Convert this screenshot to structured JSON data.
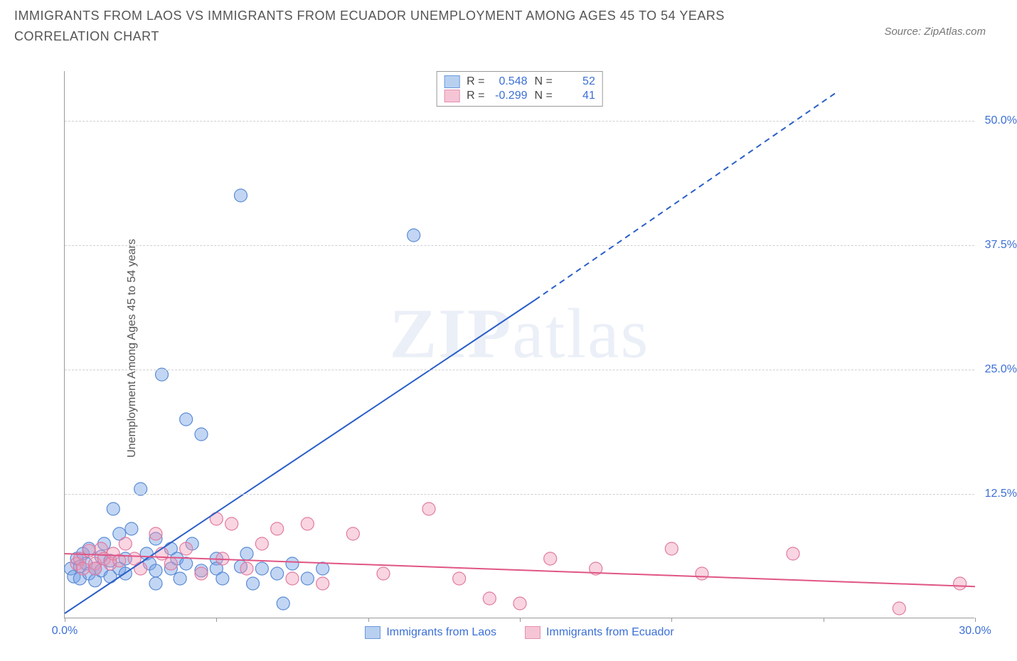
{
  "title": "IMMIGRANTS FROM LAOS VS IMMIGRANTS FROM ECUADOR UNEMPLOYMENT AMONG AGES 45 TO 54 YEARS CORRELATION CHART",
  "source": "Source: ZipAtlas.com",
  "ylabel": "Unemployment Among Ages 45 to 54 years",
  "watermark_zip": "ZIP",
  "watermark_atlas": "atlas",
  "chart": {
    "type": "scatter",
    "x_range": [
      0,
      30
    ],
    "y_range": [
      0,
      55
    ],
    "y_ticks": [
      12.5,
      25.0,
      37.5,
      50.0
    ],
    "y_tick_labels": [
      "12.5%",
      "25.0%",
      "37.5%",
      "50.0%"
    ],
    "x_ticks": [
      0,
      5,
      10,
      15,
      20,
      25,
      30
    ],
    "x_tick_labels": [
      "0.0%",
      "",
      "",
      "",
      "",
      "",
      "30.0%"
    ],
    "background_color": "#ffffff",
    "grid_color": "#d0d0d0",
    "axis_color": "#999999",
    "series": [
      {
        "name": "Immigrants from Laos",
        "color_fill": "rgba(120,165,230,0.45)",
        "color_stroke": "#5b8bd4",
        "swatch_fill": "#b8d0f0",
        "swatch_border": "#6a9ae0",
        "marker_radius": 9,
        "R": "0.548",
        "N": "52",
        "trend": {
          "x1": 0,
          "y1": 0.5,
          "x2_solid": 15.5,
          "y2_solid": 32,
          "x2_dash": 25.5,
          "y2_dash": 53,
          "color": "#2b5fc8",
          "width": 2
        },
        "points": [
          [
            0.2,
            5.0
          ],
          [
            0.3,
            4.2
          ],
          [
            0.4,
            6.0
          ],
          [
            0.5,
            5.2
          ],
          [
            0.5,
            4.0
          ],
          [
            0.6,
            6.5
          ],
          [
            0.7,
            5.5
          ],
          [
            0.8,
            7.0
          ],
          [
            0.8,
            4.5
          ],
          [
            1.0,
            5.0
          ],
          [
            1.0,
            3.8
          ],
          [
            1.2,
            6.2
          ],
          [
            1.2,
            4.8
          ],
          [
            1.3,
            7.5
          ],
          [
            1.5,
            5.8
          ],
          [
            1.5,
            4.2
          ],
          [
            1.6,
            11.0
          ],
          [
            1.8,
            8.5
          ],
          [
            1.8,
            5.0
          ],
          [
            2.0,
            6.0
          ],
          [
            2.0,
            4.5
          ],
          [
            2.2,
            9.0
          ],
          [
            2.5,
            13.0
          ],
          [
            2.7,
            6.5
          ],
          [
            2.8,
            5.5
          ],
          [
            3.0,
            8.0
          ],
          [
            3.0,
            4.8
          ],
          [
            3.0,
            3.5
          ],
          [
            3.2,
            24.5
          ],
          [
            3.5,
            7.0
          ],
          [
            3.5,
            5.0
          ],
          [
            3.7,
            6.0
          ],
          [
            3.8,
            4.0
          ],
          [
            4.0,
            20.0
          ],
          [
            4.0,
            5.5
          ],
          [
            4.2,
            7.5
          ],
          [
            4.5,
            18.5
          ],
          [
            4.5,
            4.8
          ],
          [
            5.0,
            6.0
          ],
          [
            5.0,
            5.0
          ],
          [
            5.2,
            4.0
          ],
          [
            5.8,
            42.5
          ],
          [
            5.8,
            5.2
          ],
          [
            6.0,
            6.5
          ],
          [
            6.2,
            3.5
          ],
          [
            6.5,
            5.0
          ],
          [
            7.0,
            4.5
          ],
          [
            7.2,
            1.5
          ],
          [
            7.5,
            5.5
          ],
          [
            8.0,
            4.0
          ],
          [
            8.5,
            5.0
          ],
          [
            11.5,
            38.5
          ]
        ]
      },
      {
        "name": "Immigrants from Ecuador",
        "color_fill": "rgba(240,150,180,0.40)",
        "color_stroke": "#e07ba0",
        "swatch_fill": "#f5c5d5",
        "swatch_border": "#e591b0",
        "marker_radius": 9,
        "R": "-0.299",
        "N": "41",
        "trend": {
          "x1": 0,
          "y1": 6.5,
          "x2_solid": 30,
          "y2_solid": 3.2,
          "color": "#e05585",
          "width": 2
        },
        "points": [
          [
            0.4,
            5.5
          ],
          [
            0.5,
            6.0
          ],
          [
            0.6,
            5.0
          ],
          [
            0.8,
            6.8
          ],
          [
            1.0,
            5.5
          ],
          [
            1.0,
            5.0
          ],
          [
            1.2,
            7.0
          ],
          [
            1.3,
            6.0
          ],
          [
            1.5,
            5.5
          ],
          [
            1.6,
            6.5
          ],
          [
            1.8,
            5.8
          ],
          [
            2.0,
            7.5
          ],
          [
            2.3,
            6.0
          ],
          [
            2.5,
            5.0
          ],
          [
            3.0,
            8.5
          ],
          [
            3.2,
            6.5
          ],
          [
            3.5,
            5.5
          ],
          [
            4.0,
            7.0
          ],
          [
            4.5,
            4.5
          ],
          [
            5.0,
            10.0
          ],
          [
            5.2,
            6.0
          ],
          [
            5.5,
            9.5
          ],
          [
            6.0,
            5.0
          ],
          [
            6.5,
            7.5
          ],
          [
            7.0,
            9.0
          ],
          [
            7.5,
            4.0
          ],
          [
            8.0,
            9.5
          ],
          [
            8.5,
            3.5
          ],
          [
            9.5,
            8.5
          ],
          [
            10.5,
            4.5
          ],
          [
            12.0,
            11.0
          ],
          [
            13.0,
            4.0
          ],
          [
            14.0,
            2.0
          ],
          [
            15.0,
            1.5
          ],
          [
            16.0,
            6.0
          ],
          [
            17.5,
            5.0
          ],
          [
            20.0,
            7.0
          ],
          [
            21.0,
            4.5
          ],
          [
            24.0,
            6.5
          ],
          [
            27.5,
            1.0
          ],
          [
            29.5,
            3.5
          ]
        ]
      }
    ],
    "legend_r_label": "R =",
    "legend_n_label": "N ="
  }
}
